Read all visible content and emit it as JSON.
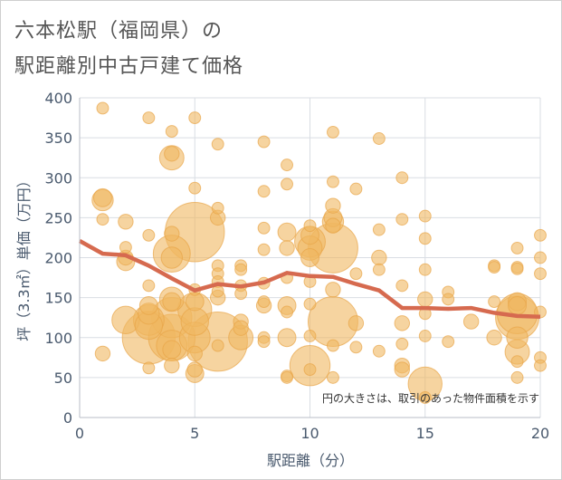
{
  "title_line1": "六本松駅（福岡県）の",
  "title_line2": "駅距離別中古戸建て価格",
  "chart_data": {
    "type": "scatter",
    "title": "六本松駅（福岡県）の駅距離別中古戸建て価格",
    "xlabel": "駅距離（分）",
    "ylabel": "坪（3.3㎡）単価（万円）",
    "xlim": [
      0,
      20
    ],
    "ylim": [
      0,
      400
    ],
    "xticks": [
      0,
      5,
      10,
      15,
      20
    ],
    "yticks": [
      0,
      50,
      100,
      150,
      200,
      250,
      300,
      350,
      400
    ],
    "grid": true,
    "annotation": "円の大きさは、取引のあった物件面積を示す",
    "colors": {
      "bubble": "#f0b860",
      "bubble_stroke": "#e8a548",
      "trend": "#d66a4f",
      "grid": "#d9dde3",
      "axis_text": "#4a5a6e"
    },
    "points": [
      {
        "x": 1,
        "y": 387,
        "s": 3
      },
      {
        "x": 1,
        "y": 275,
        "s": 5
      },
      {
        "x": 1,
        "y": 272,
        "s": 6
      },
      {
        "x": 1,
        "y": 248,
        "s": 3
      },
      {
        "x": 1,
        "y": 80,
        "s": 4
      },
      {
        "x": 2,
        "y": 245,
        "s": 4
      },
      {
        "x": 2,
        "y": 213,
        "s": 3
      },
      {
        "x": 2,
        "y": 200,
        "s": 4
      },
      {
        "x": 2,
        "y": 195,
        "s": 5
      },
      {
        "x": 2,
        "y": 122,
        "s": 8
      },
      {
        "x": 3,
        "y": 375,
        "s": 3
      },
      {
        "x": 3,
        "y": 228,
        "s": 3
      },
      {
        "x": 3,
        "y": 165,
        "s": 3
      },
      {
        "x": 3,
        "y": 140,
        "s": 5
      },
      {
        "x": 3,
        "y": 130,
        "s": 6
      },
      {
        "x": 3,
        "y": 122,
        "s": 9
      },
      {
        "x": 3,
        "y": 115,
        "s": 8
      },
      {
        "x": 3,
        "y": 100,
        "s": 16
      },
      {
        "x": 3,
        "y": 62,
        "s": 3
      },
      {
        "x": 4,
        "y": 358,
        "s": 3
      },
      {
        "x": 4,
        "y": 330,
        "s": 4
      },
      {
        "x": 4,
        "y": 325,
        "s": 7
      },
      {
        "x": 4,
        "y": 230,
        "s": 4
      },
      {
        "x": 4,
        "y": 205,
        "s": 11
      },
      {
        "x": 4,
        "y": 200,
        "s": 6
      },
      {
        "x": 4,
        "y": 148,
        "s": 7
      },
      {
        "x": 4,
        "y": 145,
        "s": 5
      },
      {
        "x": 4,
        "y": 125,
        "s": 12
      },
      {
        "x": 4,
        "y": 100,
        "s": 14
      },
      {
        "x": 4,
        "y": 90,
        "s": 9
      },
      {
        "x": 4,
        "y": 85,
        "s": 5
      },
      {
        "x": 4,
        "y": 65,
        "s": 4
      },
      {
        "x": 5,
        "y": 375,
        "s": 3
      },
      {
        "x": 5,
        "y": 287,
        "s": 3
      },
      {
        "x": 5,
        "y": 232,
        "s": 18
      },
      {
        "x": 5,
        "y": 160,
        "s": 3
      },
      {
        "x": 5,
        "y": 145,
        "s": 5
      },
      {
        "x": 5,
        "y": 135,
        "s": 10
      },
      {
        "x": 5,
        "y": 120,
        "s": 8
      },
      {
        "x": 5,
        "y": 100,
        "s": 9
      },
      {
        "x": 5,
        "y": 80,
        "s": 4
      },
      {
        "x": 5,
        "y": 60,
        "s": 4
      },
      {
        "x": 5,
        "y": 55,
        "s": 5
      },
      {
        "x": 6,
        "y": 342,
        "s": 3
      },
      {
        "x": 6,
        "y": 262,
        "s": 3
      },
      {
        "x": 6,
        "y": 250,
        "s": 4
      },
      {
        "x": 6,
        "y": 190,
        "s": 3
      },
      {
        "x": 6,
        "y": 180,
        "s": 3
      },
      {
        "x": 6,
        "y": 170,
        "s": 3
      },
      {
        "x": 6,
        "y": 158,
        "s": 3
      },
      {
        "x": 6,
        "y": 150,
        "s": 4
      },
      {
        "x": 6,
        "y": 95,
        "s": 18
      },
      {
        "x": 6,
        "y": 90,
        "s": 3
      },
      {
        "x": 7,
        "y": 190,
        "s": 3
      },
      {
        "x": 7,
        "y": 185,
        "s": 3
      },
      {
        "x": 7,
        "y": 165,
        "s": 3
      },
      {
        "x": 7,
        "y": 155,
        "s": 3
      },
      {
        "x": 7,
        "y": 120,
        "s": 4
      },
      {
        "x": 7,
        "y": 112,
        "s": 4
      },
      {
        "x": 7,
        "y": 100,
        "s": 7
      },
      {
        "x": 8,
        "y": 345,
        "s": 3
      },
      {
        "x": 8,
        "y": 283,
        "s": 3
      },
      {
        "x": 8,
        "y": 237,
        "s": 3
      },
      {
        "x": 8,
        "y": 210,
        "s": 3
      },
      {
        "x": 8,
        "y": 168,
        "s": 3
      },
      {
        "x": 8,
        "y": 145,
        "s": 3
      },
      {
        "x": 8,
        "y": 140,
        "s": 4
      },
      {
        "x": 8,
        "y": 100,
        "s": 3
      },
      {
        "x": 8,
        "y": 95,
        "s": 3
      },
      {
        "x": 9,
        "y": 316,
        "s": 3
      },
      {
        "x": 9,
        "y": 292,
        "s": 3
      },
      {
        "x": 9,
        "y": 232,
        "s": 5
      },
      {
        "x": 9,
        "y": 212,
        "s": 4
      },
      {
        "x": 9,
        "y": 175,
        "s": 3
      },
      {
        "x": 9,
        "y": 140,
        "s": 5
      },
      {
        "x": 9,
        "y": 132,
        "s": 3
      },
      {
        "x": 9,
        "y": 100,
        "s": 5
      },
      {
        "x": 9,
        "y": 52,
        "s": 3
      },
      {
        "x": 9,
        "y": 50,
        "s": 3
      },
      {
        "x": 10,
        "y": 240,
        "s": 3
      },
      {
        "x": 10,
        "y": 228,
        "s": 5
      },
      {
        "x": 10,
        "y": 220,
        "s": 9
      },
      {
        "x": 10,
        "y": 212,
        "s": 7
      },
      {
        "x": 10,
        "y": 200,
        "s": 5
      },
      {
        "x": 10,
        "y": 170,
        "s": 3
      },
      {
        "x": 10,
        "y": 142,
        "s": 3
      },
      {
        "x": 10,
        "y": 102,
        "s": 3
      },
      {
        "x": 10,
        "y": 65,
        "s": 12
      },
      {
        "x": 10,
        "y": 60,
        "s": 3
      },
      {
        "x": 11,
        "y": 357,
        "s": 3
      },
      {
        "x": 11,
        "y": 295,
        "s": 3
      },
      {
        "x": 11,
        "y": 265,
        "s": 4
      },
      {
        "x": 11,
        "y": 250,
        "s": 5
      },
      {
        "x": 11,
        "y": 245,
        "s": 6
      },
      {
        "x": 11,
        "y": 240,
        "s": 4
      },
      {
        "x": 11,
        "y": 212,
        "s": 15
      },
      {
        "x": 11,
        "y": 160,
        "s": 4
      },
      {
        "x": 11,
        "y": 120,
        "s": 15
      },
      {
        "x": 11,
        "y": 90,
        "s": 3
      },
      {
        "x": 11,
        "y": 50,
        "s": 3
      },
      {
        "x": 12,
        "y": 286,
        "s": 3
      },
      {
        "x": 12,
        "y": 180,
        "s": 3
      },
      {
        "x": 12,
        "y": 118,
        "s": 4
      },
      {
        "x": 12,
        "y": 88,
        "s": 3
      },
      {
        "x": 13,
        "y": 349,
        "s": 3
      },
      {
        "x": 13,
        "y": 235,
        "s": 3
      },
      {
        "x": 13,
        "y": 200,
        "s": 4
      },
      {
        "x": 13,
        "y": 185,
        "s": 3
      },
      {
        "x": 13,
        "y": 83,
        "s": 3
      },
      {
        "x": 14,
        "y": 300,
        "s": 3
      },
      {
        "x": 14,
        "y": 248,
        "s": 3
      },
      {
        "x": 14,
        "y": 165,
        "s": 3
      },
      {
        "x": 14,
        "y": 118,
        "s": 4
      },
      {
        "x": 14,
        "y": 92,
        "s": 3
      },
      {
        "x": 14,
        "y": 65,
        "s": 4
      },
      {
        "x": 14,
        "y": 60,
        "s": 4
      },
      {
        "x": 15,
        "y": 252,
        "s": 3
      },
      {
        "x": 15,
        "y": 224,
        "s": 3
      },
      {
        "x": 15,
        "y": 185,
        "s": 3
      },
      {
        "x": 15,
        "y": 148,
        "s": 4
      },
      {
        "x": 15,
        "y": 130,
        "s": 3
      },
      {
        "x": 15,
        "y": 102,
        "s": 3
      },
      {
        "x": 15,
        "y": 42,
        "s": 10
      },
      {
        "x": 15,
        "y": 25,
        "s": 3
      },
      {
        "x": 16,
        "y": 157,
        "s": 3
      },
      {
        "x": 16,
        "y": 148,
        "s": 3
      },
      {
        "x": 16,
        "y": 95,
        "s": 3
      },
      {
        "x": 17,
        "y": 120,
        "s": 4
      },
      {
        "x": 18,
        "y": 190,
        "s": 3
      },
      {
        "x": 18,
        "y": 188,
        "s": 3
      },
      {
        "x": 18,
        "y": 145,
        "s": 3
      },
      {
        "x": 18,
        "y": 100,
        "s": 4
      },
      {
        "x": 19,
        "y": 212,
        "s": 3
      },
      {
        "x": 19,
        "y": 188,
        "s": 3
      },
      {
        "x": 19,
        "y": 186,
        "s": 3
      },
      {
        "x": 19,
        "y": 145,
        "s": 5
      },
      {
        "x": 19,
        "y": 140,
        "s": 5
      },
      {
        "x": 19,
        "y": 130,
        "s": 12
      },
      {
        "x": 19,
        "y": 125,
        "s": 13
      },
      {
        "x": 19,
        "y": 100,
        "s": 6
      },
      {
        "x": 19,
        "y": 82,
        "s": 7
      },
      {
        "x": 19,
        "y": 70,
        "s": 3
      },
      {
        "x": 19,
        "y": 50,
        "s": 3
      },
      {
        "x": 20,
        "y": 228,
        "s": 3
      },
      {
        "x": 20,
        "y": 200,
        "s": 3
      },
      {
        "x": 20,
        "y": 180,
        "s": 3
      },
      {
        "x": 20,
        "y": 132,
        "s": 3
      },
      {
        "x": 20,
        "y": 75,
        "s": 3
      },
      {
        "x": 20,
        "y": 65,
        "s": 3
      }
    ],
    "trend": [
      {
        "x": 0,
        "y": 221
      },
      {
        "x": 1,
        "y": 205
      },
      {
        "x": 2,
        "y": 203
      },
      {
        "x": 3,
        "y": 190
      },
      {
        "x": 4,
        "y": 174
      },
      {
        "x": 5,
        "y": 159
      },
      {
        "x": 6,
        "y": 167
      },
      {
        "x": 7,
        "y": 164
      },
      {
        "x": 8,
        "y": 169
      },
      {
        "x": 9,
        "y": 181
      },
      {
        "x": 10,
        "y": 177
      },
      {
        "x": 11,
        "y": 176
      },
      {
        "x": 12,
        "y": 167
      },
      {
        "x": 13,
        "y": 159
      },
      {
        "x": 14,
        "y": 137
      },
      {
        "x": 15,
        "y": 137
      },
      {
        "x": 16,
        "y": 136
      },
      {
        "x": 17,
        "y": 137
      },
      {
        "x": 18,
        "y": 131
      },
      {
        "x": 19,
        "y": 127
      },
      {
        "x": 20,
        "y": 126
      }
    ]
  }
}
